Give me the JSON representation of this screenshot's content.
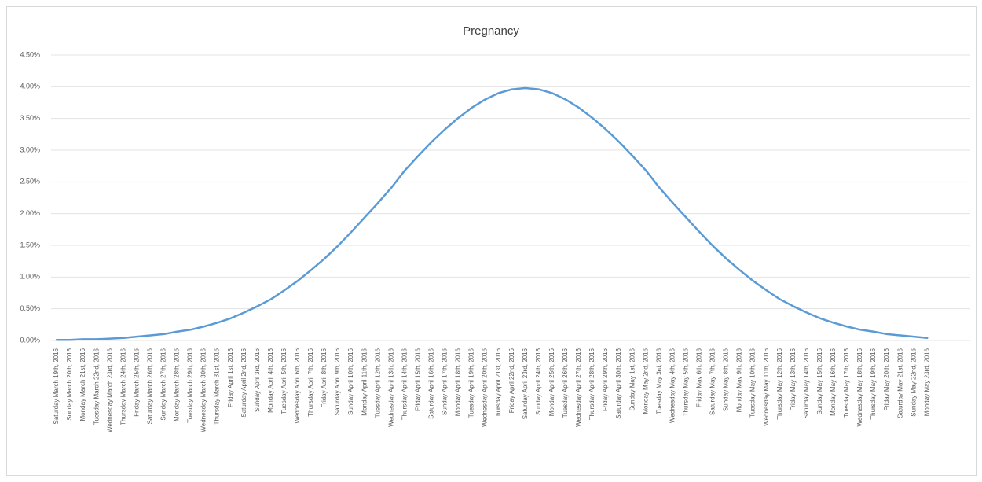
{
  "chart_data": {
    "type": "line",
    "title": "Pregnancy",
    "categories": [
      "Saturday March 19th, 2016",
      "Sunday March 20th, 2016",
      "Monday March 21st, 2016",
      "Tuesday March 22nd, 2016",
      "Wednesday March 23rd, 2016",
      "Thursday March 24th, 2016",
      "Friday March 25th, 2016",
      "Saturday March 26th, 2016",
      "Sunday March 27th, 2016",
      "Monday March 28th, 2016",
      "Tuesday March 29th, 2016",
      "Wednesday March 30th, 2016",
      "Thursday March 31st, 2016",
      "Friday April 1st, 2016",
      "Saturday April 2nd, 2016",
      "Sunday April 3rd, 2016",
      "Monday April 4th, 2016",
      "Tuesday April 5th, 2016",
      "Wednesday April 6th, 2016",
      "Thursday April 7th, 2016",
      "Friday April 8th, 2016",
      "Saturday April 9th, 2016",
      "Sunday April 10th, 2016",
      "Monday April 11th, 2016",
      "Tuesday April 12th, 2016",
      "Wednesday April 13th, 2016",
      "Thursday April 14th, 2016",
      "Friday April 15th, 2016",
      "Saturday April 16th, 2016",
      "Sunday April 17th, 2016",
      "Monday April 18th, 2016",
      "Tuesday April 19th, 2016",
      "Wednesday April 20th, 2016",
      "Thursday April 21st, 2016",
      "Friday April 22nd, 2016",
      "Saturday April 23rd, 2016",
      "Sunday April 24th, 2016",
      "Monday April 25th, 2016",
      "Tuesday April 26th, 2016",
      "Wednesday April 27th, 2016",
      "Thursday April 28th, 2016",
      "Friday April 29th, 2016",
      "Saturday April 30th, 2016",
      "Sunday May 1st, 2016",
      "Monday May 2nd, 2016",
      "Tuesday May 3rd, 2016",
      "Wednesday May 4th, 2016",
      "Thursday May 5th, 2016",
      "Friday May 6th, 2016",
      "Saturday May 7th, 2016",
      "Sunday May 8th, 2016",
      "Monday May 9th, 2016",
      "Tuesday May 10th, 2016",
      "Wednesday May 11th, 2016",
      "Thursday May 12th, 2016",
      "Friday May 13th, 2016",
      "Saturday May 14th, 2016",
      "Sunday May 15th, 2016",
      "Monday May 16th, 2016",
      "Tuesday May 17th, 2016",
      "Wednesday May 18th, 2016",
      "Thursday May 19th, 2016",
      "Friday May 20th, 2016",
      "Saturday May 21st, 2016",
      "Sunday May 22nd, 2016",
      "Monday May 23rd, 2016"
    ],
    "values": [
      0.01,
      0.01,
      0.02,
      0.02,
      0.03,
      0.04,
      0.06,
      0.08,
      0.1,
      0.14,
      0.17,
      0.22,
      0.28,
      0.35,
      0.44,
      0.54,
      0.65,
      0.79,
      0.94,
      1.11,
      1.29,
      1.49,
      1.71,
      1.94,
      2.17,
      2.41,
      2.68,
      2.91,
      3.13,
      3.33,
      3.51,
      3.67,
      3.8,
      3.9,
      3.96,
      3.98,
      3.96,
      3.9,
      3.8,
      3.67,
      3.51,
      3.33,
      3.13,
      2.91,
      2.68,
      2.41,
      2.17,
      1.94,
      1.71,
      1.49,
      1.29,
      1.11,
      0.94,
      0.79,
      0.65,
      0.54,
      0.44,
      0.35,
      0.28,
      0.22,
      0.17,
      0.14,
      0.1,
      0.08,
      0.06,
      0.04
    ],
    "color": "#5b9bd5",
    "ylim": [
      0,
      4.5
    ],
    "yticks": [
      {
        "value": 0,
        "label": "0.00%"
      },
      {
        "value": 0.5,
        "label": "0.50%"
      },
      {
        "value": 1,
        "label": "1.00%"
      },
      {
        "value": 1.5,
        "label": "1.50%"
      },
      {
        "value": 2,
        "label": "2.00%"
      },
      {
        "value": 2.5,
        "label": "2.50%"
      },
      {
        "value": 3,
        "label": "3.00%"
      },
      {
        "value": 3.5,
        "label": "3.50%"
      },
      {
        "value": 4,
        "label": "4.00%"
      },
      {
        "value": 4.5,
        "label": "4.50%"
      }
    ],
    "grid": true
  }
}
